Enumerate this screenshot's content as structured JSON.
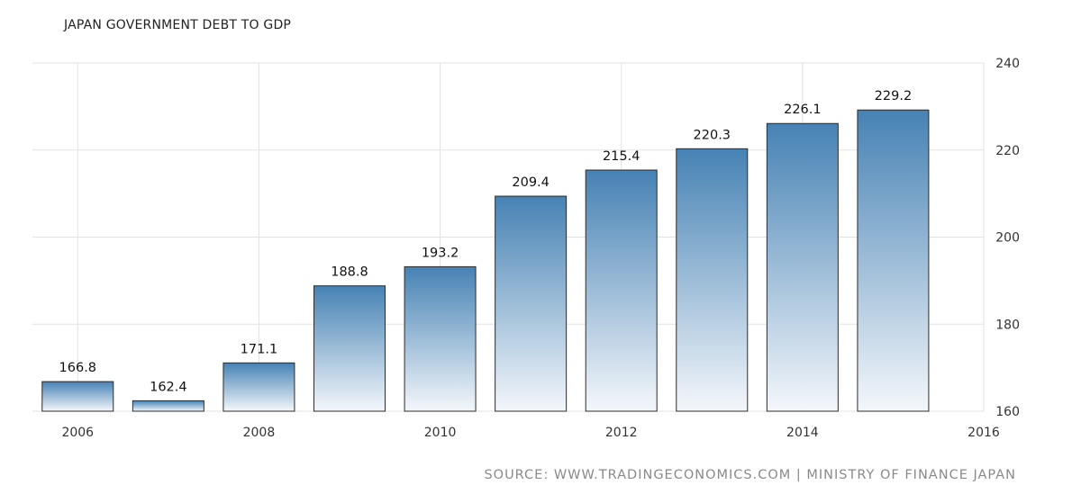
{
  "title": "JAPAN GOVERNMENT DEBT TO GDP",
  "source": "SOURCE: WWW.TRADINGECONOMICS.COM | MINISTRY OF FINANCE JAPAN",
  "chart_data": {
    "type": "bar",
    "title": "JAPAN GOVERNMENT DEBT TO GDP",
    "categories": [
      "2006",
      "2007",
      "2008",
      "2009",
      "2010",
      "2011",
      "2012",
      "2013",
      "2014",
      "2015"
    ],
    "values": [
      166.8,
      162.4,
      171.1,
      188.8,
      193.2,
      209.4,
      215.4,
      220.3,
      226.1,
      229.2
    ],
    "data_labels": [
      "166.8",
      "162.4",
      "171.1",
      "188.8",
      "193.2",
      "209.4",
      "215.4",
      "220.3",
      "226.1",
      "229.2"
    ],
    "x_tick_labels": [
      "2006",
      "2008",
      "2010",
      "2012",
      "2014",
      "2016"
    ],
    "y_tick_labels": [
      "160",
      "180",
      "200",
      "220",
      "240"
    ],
    "y_ticks": [
      160,
      180,
      200,
      220,
      240
    ],
    "ylim": [
      160,
      240
    ],
    "xlim": [
      2005.5,
      2016
    ],
    "y_axis_side": "right",
    "grid": true,
    "legend": "none",
    "xlabel": "",
    "ylabel": "",
    "colors": {
      "bar_top": "#4682b4",
      "bar_bottom": "#f4f7fb",
      "bar_outline": "#2b2b2b",
      "grid": "#e2e2e2",
      "source_text": "#8a8a8a"
    }
  }
}
